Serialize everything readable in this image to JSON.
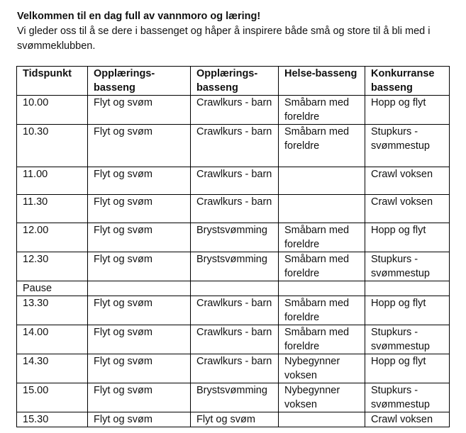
{
  "title": "Velkommen til en dag full av vannmoro og læring!",
  "intro": "Vi gleder oss til å se dere i bassenget og håper å inspirere både små og store til å bli med i svømmeklubben.",
  "headers": [
    "Tidspunkt",
    "Opplærings-basseng",
    "Opplærings-basseng",
    "Helse-basseng",
    "Konkurranse basseng"
  ],
  "rows": [
    [
      "10.00",
      "Flyt og svøm",
      "Crawlkurs - barn",
      "Småbarn med foreldre",
      "Hopp og flyt"
    ],
    [
      "10.30",
      "Flyt og svøm",
      "Crawlkurs - barn",
      "Småbarn med foreldre",
      "Stupkurs - svømmestup"
    ],
    [
      "11.00",
      "Flyt og svøm",
      "Crawlkurs - barn",
      "",
      "Crawl voksen"
    ],
    [
      "11.30",
      "Flyt og svøm",
      "Crawlkurs - barn",
      "",
      "Crawl voksen"
    ],
    [
      "12.00",
      "Flyt og svøm",
      "Brystsvømming",
      "Småbarn med foreldre",
      "Hopp og flyt"
    ],
    [
      "12.30",
      "Flyt og svøm",
      "Brystsvømming",
      "Småbarn med foreldre",
      "Stupkurs - svømmestup"
    ],
    [
      "Pause",
      "",
      "",
      "",
      ""
    ],
    [
      "13.30",
      "Flyt og svøm",
      "Crawlkurs - barn",
      "Småbarn med foreldre",
      "Hopp og flyt"
    ],
    [
      "14.00",
      "Flyt og svøm",
      "Crawlkurs - barn",
      "Småbarn med foreldre",
      "Stupkurs - svømmestup"
    ],
    [
      "14.30",
      "Flyt og svøm",
      "Crawlkurs - barn",
      "Nybegynner voksen",
      "Hopp og flyt"
    ],
    [
      "15.00",
      "Flyt og svøm",
      "Brystsvømming",
      "Nybegynner voksen",
      "Stupkurs - svømmestup"
    ],
    [
      "15.30",
      "Flyt og svøm",
      "Flyt og svøm",
      "",
      "Crawl voksen"
    ]
  ]
}
